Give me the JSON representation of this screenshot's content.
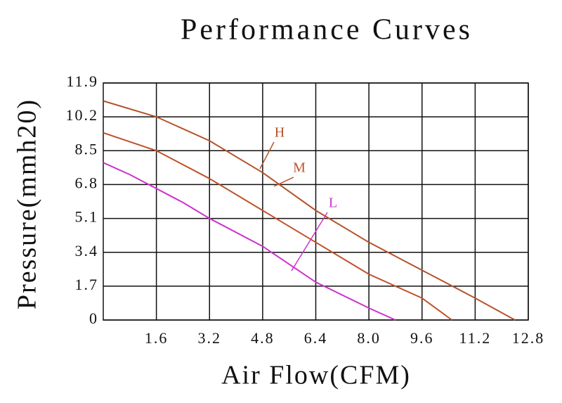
{
  "chart_data": {
    "type": "line",
    "title": "Performance Curves",
    "x_label": "Air Flow(CFM)",
    "y_label": "Pressure(mmh20)",
    "xlim": [
      0,
      12.8
    ],
    "xticks": [
      {
        "value": 1.6,
        "label": "1.6"
      },
      {
        "value": 3.2,
        "label": "3.2"
      },
      {
        "value": 4.8,
        "label": "4.8"
      },
      {
        "value": 6.4,
        "label": "6.4"
      },
      {
        "value": 8.0,
        "label": "8.0"
      },
      {
        "value": 9.6,
        "label": "9.6"
      },
      {
        "value": 11.2,
        "label": "11.2"
      },
      {
        "value": 12.8,
        "label": "12.8"
      }
    ],
    "ylim": [
      0,
      11.9
    ],
    "yticks": [
      0,
      1.7,
      3.4,
      5.1,
      6.8,
      8.5,
      10.2,
      11.9
    ],
    "grid": true,
    "series": [
      {
        "name": "H",
        "color": "#b4532a",
        "x": [
          0,
          1.6,
          3.2,
          4.8,
          6.4,
          8.0,
          9.6,
          11.2,
          12.4
        ],
        "values": [
          11.0,
          10.2,
          9.0,
          7.4,
          5.5,
          3.9,
          2.5,
          1.1,
          0
        ]
      },
      {
        "name": "M",
        "color": "#c0502a",
        "x": [
          0,
          1.6,
          3.2,
          4.8,
          6.4,
          8.0,
          9.6,
          10.5
        ],
        "values": [
          9.4,
          8.5,
          7.1,
          5.5,
          3.9,
          2.3,
          1.1,
          0
        ]
      },
      {
        "name": "L",
        "color": "#cc33cc",
        "x": [
          0,
          0.8,
          2.4,
          3.2,
          4.8,
          6.4,
          8.0,
          8.8
        ],
        "values": [
          7.9,
          7.3,
          5.9,
          5.1,
          3.7,
          1.9,
          0.6,
          0
        ]
      }
    ]
  }
}
